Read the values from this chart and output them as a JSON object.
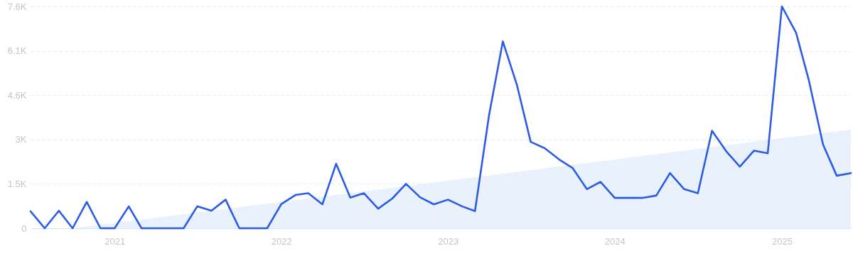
{
  "chart_data": {
    "type": "line",
    "x": [
      "2020-07",
      "2020-08",
      "2020-09",
      "2020-10",
      "2020-11",
      "2020-12",
      "2021-01",
      "2021-02",
      "2021-03",
      "2021-04",
      "2021-05",
      "2021-06",
      "2021-07",
      "2021-08",
      "2021-09",
      "2021-10",
      "2021-11",
      "2021-12",
      "2022-01",
      "2022-02",
      "2022-03",
      "2022-04",
      "2022-05",
      "2022-06",
      "2022-07",
      "2022-08",
      "2022-09",
      "2022-10",
      "2022-11",
      "2022-12",
      "2023-01",
      "2023-02",
      "2023-03",
      "2023-04",
      "2023-05",
      "2023-06",
      "2023-07",
      "2023-08",
      "2023-09",
      "2023-10",
      "2023-11",
      "2023-12",
      "2024-01",
      "2024-02",
      "2024-03",
      "2024-04",
      "2024-05",
      "2024-06",
      "2024-07",
      "2024-08",
      "2024-09",
      "2024-10",
      "2024-11",
      "2024-12",
      "2025-01",
      "2025-02",
      "2025-03",
      "2025-04",
      "2025-05",
      "2025-06"
    ],
    "series": [
      {
        "type": "area",
        "color": "#e4eefc",
        "x": [
          "2020-10",
          "2025-06"
        ],
        "values": [
          0,
          3380
        ]
      },
      {
        "color": "#2c5ce6",
        "values": [
          580,
          0,
          600,
          0,
          900,
          0,
          0,
          750,
          0,
          0,
          0,
          0,
          750,
          600,
          980,
          0,
          0,
          0,
          830,
          1140,
          1200,
          820,
          2210,
          1050,
          1200,
          670,
          1020,
          1520,
          1060,
          820,
          980,
          750,
          590,
          3890,
          6400,
          4900,
          2960,
          2740,
          2360,
          2060,
          1340,
          1590,
          1040,
          1040,
          1040,
          1120,
          1890,
          1340,
          1200,
          3340,
          2640,
          2110,
          2660,
          2570,
          7600,
          6700,
          5070,
          2870,
          1800,
          1890
        ]
      }
    ],
    "xlim": [
      "2020-07",
      "2025-06"
    ],
    "xticks": [
      "2021",
      "2022",
      "2023",
      "2024",
      "2025"
    ],
    "ylim": [
      0,
      7600
    ],
    "yticks": [
      0,
      {
        "value": 1520,
        "label": "1.5K"
      },
      {
        "value": 3040,
        "label": "3K"
      },
      {
        "value": 4560,
        "label": "4.6K"
      },
      {
        "value": 6080,
        "label": "6.1K"
      },
      {
        "value": 7600,
        "label": "7.6K"
      }
    ],
    "grid": "y"
  }
}
